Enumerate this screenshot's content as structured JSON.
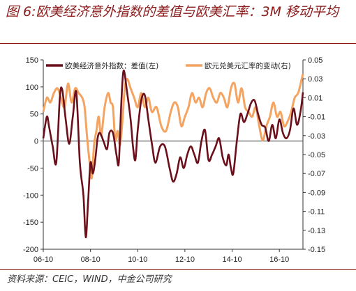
{
  "title": "图 6:欧美经济意外指数的差值与欧美汇率：3M 移动平均",
  "source": "资料来源：CEIC，WIND，中金公司研究",
  "colors": {
    "title": "#8b1a1a",
    "series1": "#6b0f1a",
    "series2": "#f4a460"
  },
  "chart_data": {
    "type": "line",
    "title": "图 6:欧美经济意外指数的差值与欧美汇率：3M 移动平均",
    "x_ticks": [
      "06-10",
      "08-10",
      "10-10",
      "12-10",
      "14-10",
      "16-10"
    ],
    "x_range": [
      2006.75,
      2017.75
    ],
    "y_left": {
      "range": [
        -200,
        150
      ],
      "ticks": [
        150,
        100,
        50,
        0,
        -50,
        -100,
        -150,
        -200
      ]
    },
    "y_right": {
      "range": [
        -0.15,
        0.05
      ],
      "ticks": [
        "0.05",
        "0.03",
        "0.01",
        "-0.01",
        "-0.03",
        "-0.05",
        "-0.07",
        "-0.09",
        "-0.11",
        "-0.13",
        "-0.15"
      ]
    },
    "legend": {
      "placement": "top"
    },
    "series": [
      {
        "name": "欧美经济意外指数：差值(左)",
        "axis": "left",
        "x": [
          2006.75,
          2006.9,
          2007.0,
          2007.15,
          2007.3,
          2007.45,
          2007.55,
          2007.7,
          2007.85,
          2008.0,
          2008.15,
          2008.3,
          2008.45,
          2008.55,
          2008.65,
          2008.75,
          2008.85,
          2008.95,
          2009.05,
          2009.15,
          2009.3,
          2009.45,
          2009.55,
          2009.7,
          2009.85,
          2009.95,
          2010.05,
          2010.15,
          2010.3,
          2010.45,
          2010.55,
          2010.65,
          2010.75,
          2010.9,
          2011.05,
          2011.2,
          2011.35,
          2011.5,
          2011.7,
          2011.9,
          2012.1,
          2012.25,
          2012.4,
          2012.55,
          2012.7,
          2012.85,
          2013.0,
          2013.15,
          2013.3,
          2013.45,
          2013.6,
          2013.75,
          2013.9,
          2014.05,
          2014.2,
          2014.35,
          2014.5,
          2014.6,
          2014.7,
          2014.8,
          2014.95,
          2015.1,
          2015.25,
          2015.4,
          2015.55,
          2015.7,
          2015.85,
          2016.0,
          2016.15,
          2016.3,
          2016.45,
          2016.6,
          2016.75,
          2016.9,
          2017.05,
          2017.2,
          2017.35,
          2017.5,
          2017.65,
          2017.75
        ],
        "y": [
          5,
          45,
          25,
          -10,
          -40,
          80,
          95,
          40,
          -5,
          45,
          90,
          -40,
          -100,
          -178,
          -110,
          -40,
          -60,
          -35,
          5,
          15,
          0,
          -15,
          15,
          15,
          -25,
          -40,
          65,
          130,
          90,
          40,
          -10,
          -35,
          20,
          75,
          85,
          40,
          -5,
          -40,
          -10,
          -10,
          -50,
          -75,
          -60,
          -30,
          -50,
          -25,
          -10,
          -25,
          -40,
          0,
          20,
          -35,
          -25,
          -10,
          5,
          -30,
          -45,
          -25,
          -50,
          -60,
          0,
          50,
          35,
          50,
          70,
          75,
          50,
          30,
          25,
          0,
          30,
          5,
          40,
          15,
          5,
          20,
          60,
          30,
          55,
          90
        ]
      },
      {
        "name": "欧元兑美元汇率的变动(右)",
        "axis": "right",
        "x": [
          2006.75,
          2006.9,
          2007.05,
          2007.2,
          2007.35,
          2007.5,
          2007.65,
          2007.8,
          2007.95,
          2008.1,
          2008.25,
          2008.4,
          2008.5,
          2008.6,
          2008.7,
          2008.8,
          2008.9,
          2009.0,
          2009.1,
          2009.2,
          2009.35,
          2009.5,
          2009.6,
          2009.7,
          2009.8,
          2009.9,
          2010.0,
          2010.1,
          2010.2,
          2010.3,
          2010.45,
          2010.6,
          2010.75,
          2010.9,
          2011.05,
          2011.2,
          2011.35,
          2011.55,
          2011.75,
          2011.95,
          2012.15,
          2012.3,
          2012.45,
          2012.6,
          2012.75,
          2012.9,
          2013.05,
          2013.2,
          2013.35,
          2013.5,
          2013.65,
          2013.8,
          2013.95,
          2014.1,
          2014.25,
          2014.4,
          2014.55,
          2014.7,
          2014.85,
          2015.0,
          2015.15,
          2015.3,
          2015.45,
          2015.6,
          2015.75,
          2015.9,
          2016.05,
          2016.2,
          2016.35,
          2016.5,
          2016.65,
          2016.8,
          2016.95,
          2017.1,
          2017.25,
          2017.4,
          2017.55,
          2017.7,
          2017.75
        ],
        "y": [
          -0.005,
          0.01,
          0.005,
          0.015,
          0.02,
          0.01,
          0.0,
          0.025,
          0.005,
          0.02,
          0.015,
          0.01,
          0.0,
          -0.03,
          -0.055,
          -0.075,
          -0.04,
          -0.025,
          -0.01,
          -0.03,
          0.0,
          0.015,
          0.005,
          0.0,
          -0.035,
          -0.025,
          -0.04,
          -0.015,
          0.02,
          0.03,
          0.02,
          0.01,
          0.0,
          0.015,
          0.0,
          0.01,
          -0.005,
          0.0,
          -0.02,
          -0.025,
          -0.005,
          0.005,
          0.0,
          -0.02,
          -0.01,
          0.0,
          0.015,
          0.005,
          0.01,
          0.0,
          0.015,
          0.02,
          0.01,
          0.005,
          0.015,
          0.01,
          0.0,
          0.02,
          0.025,
          0.005,
          0.02,
          0.0,
          -0.005,
          -0.01,
          0.0,
          -0.02,
          -0.035,
          -0.02,
          -0.01,
          0.005,
          -0.01,
          -0.005,
          -0.02,
          -0.015,
          -0.005,
          0.01,
          0.015,
          0.03,
          0.035
        ]
      }
    ]
  }
}
